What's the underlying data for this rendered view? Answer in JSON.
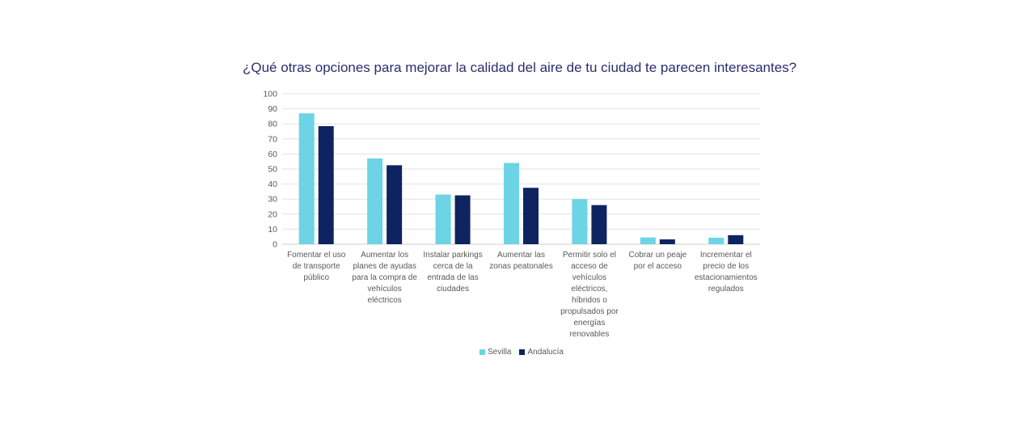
{
  "chart_data": {
    "type": "bar",
    "title": "¿Qué otras opciones para mejorar la calidad del aire de tu ciudad te parecen interesantes?",
    "xlabel": "",
    "ylabel": "",
    "ylim": [
      0,
      100
    ],
    "yticks": [
      0,
      10,
      20,
      30,
      40,
      50,
      60,
      70,
      80,
      90,
      100
    ],
    "grid": true,
    "legend_position": "bottom",
    "categories": [
      "Fomentar el uso de transporte público",
      "Aumentar los planes de ayudas para la compra de vehículos eléctricos",
      "Instalar parkings cerca de la entrada de las ciudades",
      "Aumentar las zonas peatonales",
      "Permitir solo el acceso de vehículos eléctricos, híbridos o propulsados por energías renovables",
      "Cobrar un peaje por el acceso",
      "Incrementar el precio de los estacionamientos regulados"
    ],
    "category_lines": [
      [
        "Fomentar el uso",
        "de transporte",
        "público"
      ],
      [
        "Aumentar los",
        "planes de ayudas",
        "para la compra de",
        "vehículos",
        "eléctricos"
      ],
      [
        "Instalar parkings",
        "cerca de la",
        "entrada de las",
        "ciudades"
      ],
      [
        "Aumentar las",
        "zonas peatonales"
      ],
      [
        "Permitir solo el",
        "acceso de",
        "vehículos",
        "eléctricos,",
        "híbridos o",
        "propulsados por",
        "energías",
        "renovables"
      ],
      [
        "Cobrar un peaje",
        "por el acceso"
      ],
      [
        "Incrementar el",
        "precio de los",
        "estacionamientos",
        "regulados"
      ]
    ],
    "series": [
      {
        "name": "Sevilla",
        "color": "#6cd4e4",
        "values": [
          87,
          57,
          33,
          54,
          30,
          4.5,
          4.3
        ]
      },
      {
        "name": "Andalucía",
        "color": "#0e2460",
        "values": [
          78.5,
          52.5,
          32.5,
          37.5,
          26,
          3.2,
          6
        ]
      }
    ]
  }
}
